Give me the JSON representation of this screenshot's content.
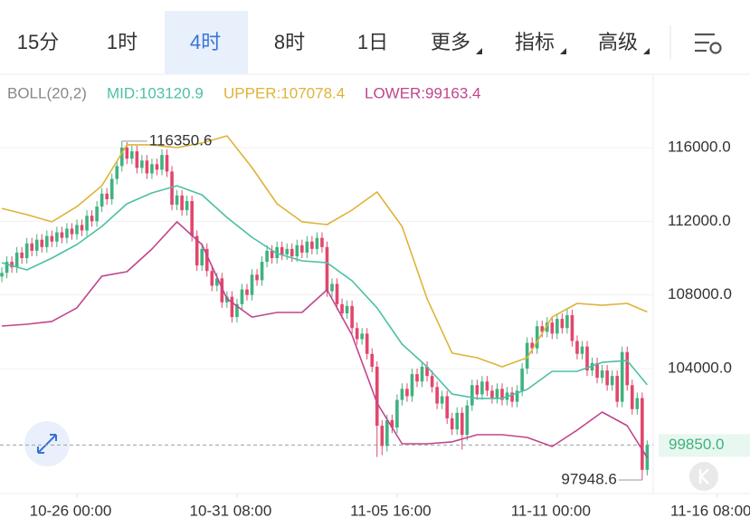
{
  "toolbar": {
    "tabs": [
      "15分",
      "1时",
      "4时",
      "8时",
      "1日"
    ],
    "selected": 2,
    "menus": [
      "更多",
      "指标",
      "高级"
    ]
  },
  "chart_data": {
    "type": "candlestick",
    "indicator": "BOLL(20,2)",
    "up_color": "#3fb27f",
    "down_color": "#e2466c",
    "x": [
      0,
      1,
      2,
      3,
      4,
      5,
      6,
      7,
      8,
      9,
      10,
      11,
      12,
      13,
      14,
      15,
      16,
      17,
      18,
      19,
      20,
      21,
      22,
      23,
      24,
      25,
      26,
      27,
      28,
      29,
      30,
      31,
      32,
      33,
      34,
      35,
      36,
      37,
      38,
      39,
      40,
      41,
      42,
      43,
      44,
      45,
      46,
      47,
      48,
      49,
      50,
      51,
      52,
      53,
      54,
      55,
      56,
      57,
      58,
      59,
      60,
      61,
      62,
      63,
      64,
      65,
      66,
      67,
      68,
      69,
      70,
      71,
      72,
      73,
      74,
      75,
      76,
      77,
      78,
      79,
      80,
      81,
      82,
      83,
      84,
      85,
      86,
      87,
      88,
      89,
      90,
      91,
      92,
      93,
      94,
      95,
      96,
      97,
      98,
      99,
      100,
      101,
      102,
      103,
      104,
      105,
      106,
      107,
      108,
      109,
      110,
      111,
      112,
      113,
      114,
      115,
      116,
      117,
      118,
      119,
      120,
      121,
      122,
      123,
      124,
      125,
      126,
      127,
      128,
      129
    ],
    "open": [
      109000,
      109200,
      109800,
      109500,
      110300,
      110000,
      110800,
      110400,
      111000,
      110600,
      111200,
      110900,
      111400,
      111100,
      111600,
      111300,
      111800,
      111500,
      112300,
      112000,
      112800,
      113500,
      113200,
      114300,
      115000,
      116000,
      115400,
      115800,
      114900,
      115300,
      114600,
      115100,
      114800,
      115600,
      114700,
      112900,
      113400,
      112600,
      113100,
      111200,
      109600,
      110500,
      109300,
      108500,
      108900,
      107600,
      107900,
      106800,
      107500,
      108300,
      108000,
      109100,
      108800,
      109800,
      110400,
      110000,
      110600,
      110200,
      110500,
      110100,
      110700,
      110300,
      110900,
      110500,
      111100,
      110600,
      108200,
      108600,
      107500,
      107000,
      107400,
      106200,
      105600,
      105900,
      104800,
      104100,
      100900,
      99800,
      101200,
      100800,
      102300,
      102900,
      102500,
      103700,
      103300,
      104100,
      103600,
      103000,
      102100,
      102500,
      101300,
      100700,
      101600,
      100400,
      102000,
      103100,
      102600,
      103300,
      102800,
      102400,
      102900,
      102300,
      102700,
      102200,
      102800,
      104000,
      105400,
      105100,
      106300,
      106000,
      106500,
      105900,
      106700,
      106200,
      106900,
      105500,
      104800,
      105200,
      103900,
      104300,
      103500,
      103900,
      103100,
      103600,
      102200,
      104900,
      103100,
      101800,
      102400,
      98500
    ],
    "high": [
      109500,
      110100,
      110100,
      110600,
      110600,
      111100,
      111100,
      111300,
      111300,
      111500,
      111500,
      111700,
      111700,
      111900,
      111900,
      112100,
      112100,
      112600,
      112600,
      113100,
      113800,
      113800,
      114600,
      115300,
      116350.6,
      116300,
      116100,
      116100,
      115600,
      115600,
      115400,
      115400,
      115900,
      115900,
      115000,
      113700,
      113700,
      113400,
      113400,
      111500,
      110800,
      110800,
      109600,
      109200,
      109200,
      108200,
      108200,
      107800,
      108600,
      108600,
      109400,
      109400,
      110100,
      110700,
      110700,
      110900,
      110900,
      110800,
      110800,
      111000,
      111000,
      111200,
      111200,
      111400,
      111400,
      110900,
      108900,
      108900,
      107800,
      107700,
      107700,
      106500,
      106200,
      106200,
      105100,
      104400,
      101200,
      101500,
      101500,
      102600,
      103200,
      103200,
      104000,
      104000,
      104400,
      104400,
      103900,
      103300,
      102800,
      102800,
      101600,
      101900,
      101900,
      102300,
      103400,
      103400,
      103600,
      103600,
      103100,
      103200,
      103200,
      103000,
      103000,
      103100,
      104300,
      105700,
      105700,
      106600,
      106600,
      106800,
      106800,
      107000,
      107000,
      107300,
      107200,
      105800,
      105500,
      105500,
      104600,
      104600,
      104200,
      104200,
      103900,
      103900,
      105200,
      105200,
      103400,
      102700,
      102700,
      100100
    ],
    "low": [
      108700,
      108900,
      109200,
      109200,
      109700,
      109700,
      110100,
      110100,
      110300,
      110300,
      110600,
      110600,
      110800,
      110800,
      111000,
      111000,
      111200,
      111200,
      111700,
      111700,
      112500,
      112900,
      112900,
      114000,
      114700,
      115100,
      115100,
      114600,
      114600,
      114300,
      114300,
      114500,
      114500,
      114400,
      112600,
      112600,
      112300,
      112300,
      110900,
      109300,
      109300,
      109000,
      108200,
      108200,
      107300,
      107300,
      106500,
      106500,
      107200,
      107700,
      107700,
      108500,
      108500,
      109500,
      109700,
      109700,
      109900,
      109900,
      109800,
      109800,
      110000,
      110000,
      110200,
      110200,
      110300,
      107900,
      107900,
      107200,
      106700,
      106700,
      105900,
      105300,
      105300,
      104500,
      103800,
      99200,
      99300,
      99500,
      100500,
      100500,
      102000,
      102200,
      102200,
      103000,
      103000,
      103300,
      102700,
      101800,
      101800,
      101000,
      100400,
      100400,
      99600,
      100100,
      101700,
      102300,
      102300,
      102500,
      102100,
      102100,
      102000,
      102000,
      101900,
      101900,
      102500,
      103700,
      104800,
      104800,
      105700,
      105700,
      105600,
      105600,
      105900,
      105900,
      105200,
      104500,
      104500,
      103600,
      103600,
      103200,
      103200,
      102800,
      102800,
      101900,
      101900,
      102800,
      101500,
      101500,
      97948.6,
      98200
    ],
    "close": [
      109200,
      109800,
      109500,
      110300,
      110000,
      110800,
      110400,
      111000,
      110600,
      111200,
      110900,
      111400,
      111100,
      111600,
      111300,
      111800,
      111500,
      112300,
      112000,
      112800,
      113500,
      113200,
      114300,
      115000,
      116000,
      115400,
      115800,
      114900,
      115300,
      114600,
      115100,
      114800,
      115600,
      114700,
      112900,
      113400,
      112600,
      113100,
      111200,
      109600,
      110500,
      109300,
      108500,
      108900,
      107600,
      107900,
      106800,
      107500,
      108300,
      108000,
      109100,
      108800,
      109800,
      110400,
      110000,
      110600,
      110200,
      110500,
      110100,
      110700,
      110300,
      110900,
      110500,
      111100,
      110600,
      108200,
      108600,
      107500,
      107000,
      107400,
      106200,
      105600,
      105900,
      104800,
      104100,
      100900,
      99800,
      101200,
      100800,
      102300,
      102900,
      102500,
      103700,
      103300,
      104100,
      103600,
      103000,
      102100,
      102500,
      101300,
      100700,
      101600,
      100400,
      102000,
      103100,
      102600,
      103300,
      102800,
      102400,
      102900,
      102300,
      102700,
      102200,
      102800,
      104000,
      105400,
      105100,
      106300,
      106000,
      106500,
      105900,
      106700,
      106200,
      106900,
      105500,
      104800,
      105200,
      103900,
      104300,
      103500,
      103900,
      103100,
      103600,
      102200,
      104900,
      103100,
      101800,
      102400,
      98500,
      99850
    ],
    "series": [
      {
        "label": "MID:103120.9",
        "color": "#4cc0a6",
        "x": [
          0,
          5,
          10,
          15,
          20,
          25,
          30,
          35,
          40,
          45,
          50,
          55,
          60,
          65,
          70,
          75,
          80,
          85,
          90,
          95,
          100,
          105,
          110,
          115,
          120,
          125,
          129
        ],
        "values": [
          109750,
          109360,
          110000,
          110740,
          111720,
          112950,
          113540,
          113930,
          113440,
          112210,
          111130,
          110250,
          109850,
          109750,
          108770,
          107300,
          105330,
          104100,
          102620,
          102380,
          102380,
          102870,
          103850,
          103850,
          104340,
          104440,
          103120.9
        ]
      },
      {
        "label": "UPPER:107078.4",
        "color": "#dfb338",
        "x": [
          0,
          5,
          10,
          15,
          20,
          25,
          30,
          35,
          40,
          45,
          50,
          55,
          60,
          65,
          70,
          75,
          80,
          85,
          90,
          95,
          100,
          105,
          110,
          115,
          120,
          125,
          129
        ],
        "values": [
          112700,
          112360,
          111970,
          112800,
          113930,
          116150,
          116150,
          116000,
          116250,
          116640,
          114920,
          112950,
          111970,
          111820,
          112610,
          113590,
          111720,
          107790,
          104840,
          104590,
          104100,
          104590,
          106800,
          107540,
          107440,
          107540,
          107078.4
        ]
      },
      {
        "label": "LOWER:99163.4",
        "color": "#c0458c",
        "x": [
          0,
          5,
          10,
          15,
          20,
          25,
          30,
          35,
          40,
          45,
          50,
          55,
          60,
          65,
          70,
          75,
          80,
          85,
          90,
          95,
          100,
          105,
          110,
          115,
          120,
          125,
          129
        ],
        "values": [
          106310,
          106410,
          106560,
          107300,
          109020,
          109260,
          110490,
          111970,
          110740,
          107790,
          106800,
          107050,
          107050,
          108280,
          105820,
          102130,
          99920,
          99920,
          100020,
          100410,
          100410,
          100260,
          99770,
          100660,
          101640,
          100900,
          99163.4
        ]
      }
    ],
    "xlim": [
      -0.37,
      130.2
    ],
    "xticks": [
      {
        "value": 15,
        "label": "10-26 00:00"
      },
      {
        "value": 47,
        "label": "10-31 08:00"
      },
      {
        "value": 79,
        "label": "11-05 16:00"
      },
      {
        "value": 111,
        "label": "11-11 00:00"
      },
      {
        "value": 143,
        "label": "11-16 08:00"
      }
    ],
    "ylim": [
      97213,
      119836
    ],
    "yticks": [
      {
        "value": 104000,
        "label": "104000.0"
      },
      {
        "value": 108000,
        "label": "108000.0"
      },
      {
        "value": 112000,
        "label": "112000.0"
      },
      {
        "value": 116000,
        "label": "116000.0"
      }
    ],
    "grid": true,
    "last_price": {
      "value": 99850,
      "label": "99850.0"
    }
  }
}
